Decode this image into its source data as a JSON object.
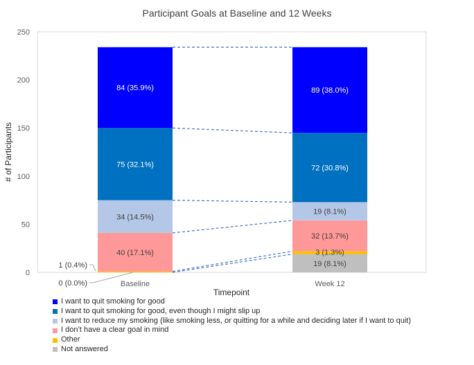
{
  "chart_data": {
    "type": "bar",
    "stacked": true,
    "title": "Participant Goals at Baseline and 12 Weeks",
    "xlabel": "Timepoint",
    "ylabel": "# of Participants",
    "ylim": [
      0,
      250
    ],
    "yticks": [
      0,
      50,
      100,
      150,
      200,
      250
    ],
    "yticklabels": [
      "0",
      "50",
      "100",
      "150",
      "200",
      "250"
    ],
    "grid": false,
    "legend_position": "bottom-left",
    "categories": [
      "Baseline",
      "Week 12"
    ],
    "series": [
      {
        "name": "Not answered",
        "color": "#bfbfbf",
        "values": [
          0,
          19
        ],
        "labels": [
          "0 (0.0%)",
          "19 (8.1%)"
        ]
      },
      {
        "name": "Other",
        "color": "#ffc000",
        "values": [
          1,
          3
        ],
        "labels": [
          "1 (0.4%)",
          "3 (1.3%)"
        ]
      },
      {
        "name": "I don't have a clear goal in mind",
        "color": "#ff9999",
        "values": [
          40,
          32
        ],
        "labels": [
          "40 (17.1%)",
          "32 (13.7%)"
        ]
      },
      {
        "name": "I want to reduce my smoking (like smoking less, or quitting for a while and deciding later if I want to quit)",
        "color": "#b4c7e7",
        "values": [
          34,
          19
        ],
        "labels": [
          "34 (14.5%)",
          "19 (8.1%)"
        ]
      },
      {
        "name": "I want to quit smoking for good, even though I might slip up",
        "color": "#0070c0",
        "values": [
          75,
          72
        ],
        "labels": [
          "75 (32.1%)",
          "72 (30.8%)"
        ]
      },
      {
        "name": "I want to quit smoking for good",
        "color": "#0000ff",
        "values": [
          84,
          89
        ],
        "labels": [
          "84 (35.9%)",
          "89 (38.0%)"
        ]
      }
    ]
  },
  "legend": {
    "items": [
      {
        "label": "I want to quit smoking for good",
        "color": "#0000ff"
      },
      {
        "label": "I want to quit smoking for good, even though I might slip up",
        "color": "#0070c0"
      },
      {
        "label": "I want to reduce my smoking (like smoking less, or quitting for a while and deciding later if I want to quit)",
        "color": "#b4c7e7"
      },
      {
        "label": "I don’t have a clear goal in mind",
        "color": "#ff9999"
      },
      {
        "label": "Other",
        "color": "#ffc000"
      },
      {
        "label": "Not answered",
        "color": "#bfbfbf"
      }
    ]
  }
}
